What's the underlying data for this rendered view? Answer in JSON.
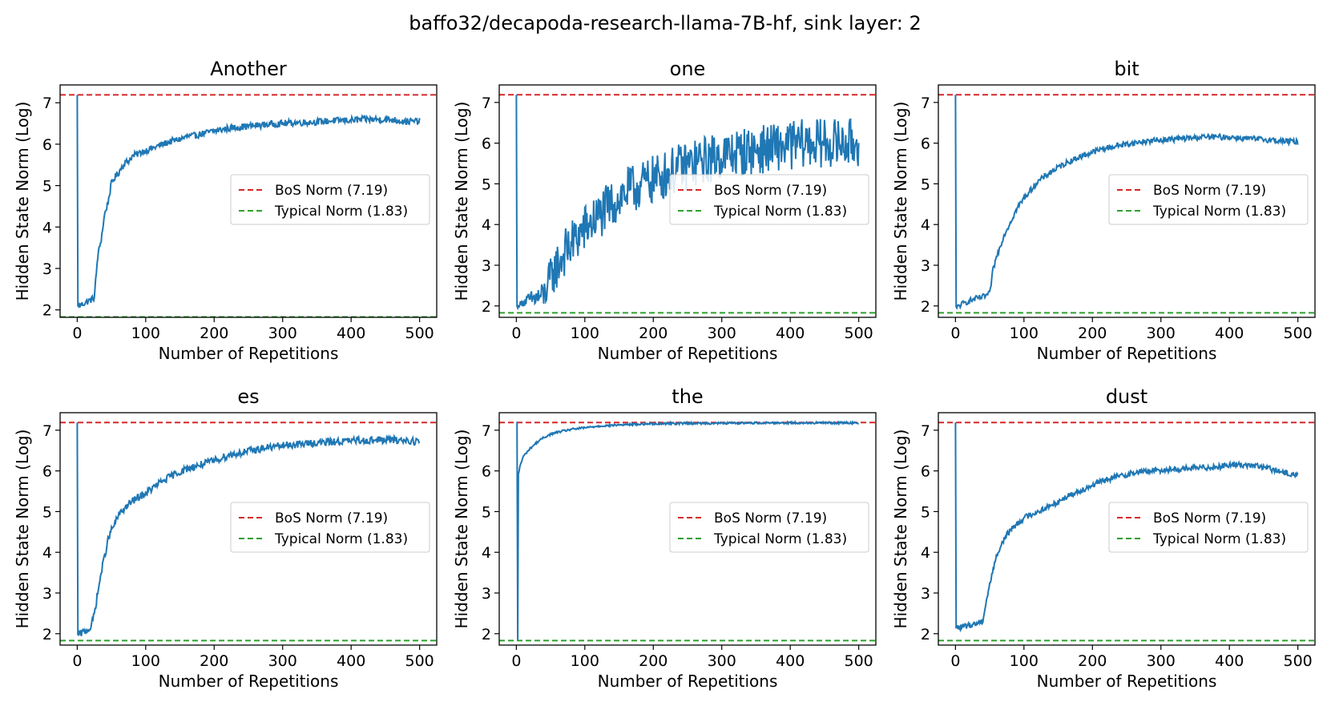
{
  "figure": {
    "suptitle": "baffo32/decapoda-research-llama-7B-hf, sink layer: 2"
  },
  "chart_data": [
    {
      "type": "line",
      "title": "Another",
      "xlabel": "Number of Repetitions",
      "ylabel": "Hidden State Norm (Log)",
      "xlim": [
        -25,
        525
      ],
      "ylim": [
        1.82,
        7.43
      ],
      "xticks": [
        0,
        100,
        200,
        300,
        400,
        500
      ],
      "yticks": [
        2,
        3,
        4,
        5,
        6,
        7
      ],
      "legend": {
        "placement": "center-right",
        "entries": [
          "BoS Norm (7.19)",
          "Typical Norm (1.83)"
        ]
      },
      "reference_lines": [
        {
          "name": "BoS Norm (7.19)",
          "y": 7.19,
          "color": "#d62728",
          "style": "dashed"
        },
        {
          "name": "Typical Norm (1.83)",
          "y": 1.83,
          "color": "#2ca02c",
          "style": "dashed"
        }
      ],
      "series": [
        {
          "name": "Hidden State Norm",
          "color": "#1f77b4",
          "x": [
            0,
            1,
            2,
            5,
            10,
            15,
            20,
            25,
            30,
            35,
            40,
            45,
            50,
            55,
            60,
            65,
            70,
            75,
            80,
            90,
            100,
            110,
            120,
            130,
            140,
            150,
            160,
            170,
            180,
            190,
            200,
            220,
            240,
            260,
            280,
            300,
            320,
            340,
            360,
            380,
            400,
            420,
            440,
            460,
            480,
            500
          ],
          "y": [
            7.19,
            2.1,
            2.08,
            2.12,
            2.16,
            2.2,
            2.24,
            2.3,
            3.3,
            3.7,
            4.3,
            4.6,
            5.05,
            5.2,
            5.3,
            5.45,
            5.55,
            5.6,
            5.7,
            5.78,
            5.85,
            5.9,
            5.97,
            6.03,
            6.08,
            6.12,
            6.18,
            6.2,
            6.24,
            6.28,
            6.32,
            6.38,
            6.42,
            6.45,
            6.48,
            6.5,
            6.52,
            6.53,
            6.55,
            6.57,
            6.58,
            6.6,
            6.6,
            6.59,
            6.55,
            6.55
          ],
          "noise": 0.08
        }
      ]
    },
    {
      "type": "line",
      "title": "one",
      "xlabel": "Number of Repetitions",
      "ylabel": "Hidden State Norm (Log)",
      "xlim": [
        -25,
        525
      ],
      "ylim": [
        1.72,
        7.43
      ],
      "xticks": [
        0,
        100,
        200,
        300,
        400,
        500
      ],
      "yticks": [
        2,
        3,
        4,
        5,
        6,
        7
      ],
      "legend": {
        "placement": "center-right",
        "entries": [
          "BoS Norm (7.19)",
          "Typical Norm (1.83)"
        ]
      },
      "reference_lines": [
        {
          "name": "BoS Norm (7.19)",
          "y": 7.19,
          "color": "#d62728",
          "style": "dashed"
        },
        {
          "name": "Typical Norm (1.83)",
          "y": 1.83,
          "color": "#2ca02c",
          "style": "dashed"
        }
      ],
      "series": [
        {
          "name": "Hidden State Norm",
          "color": "#1f77b4",
          "x": [
            0,
            1,
            2,
            5,
            10,
            20,
            30,
            40,
            50,
            60,
            70,
            80,
            90,
            100,
            120,
            140,
            160,
            180,
            200,
            220,
            240,
            260,
            280,
            300,
            320,
            340,
            360,
            380,
            400,
            420,
            440,
            460,
            480,
            500
          ],
          "y": [
            7.19,
            2.0,
            1.95,
            2.05,
            2.1,
            2.15,
            2.2,
            2.25,
            2.7,
            3.0,
            3.3,
            3.5,
            3.7,
            3.9,
            4.2,
            4.5,
            4.8,
            4.95,
            5.1,
            5.25,
            5.4,
            5.5,
            5.6,
            5.7,
            5.75,
            5.8,
            5.85,
            5.9,
            5.95,
            6.0,
            6.0,
            6.0,
            6.0,
            6.0
          ],
          "noise": 0.6
        }
      ]
    },
    {
      "type": "line",
      "title": "bit",
      "xlabel": "Number of Repetitions",
      "ylabel": "Hidden State Norm (Log)",
      "xlim": [
        -25,
        525
      ],
      "ylim": [
        1.72,
        7.43
      ],
      "xticks": [
        0,
        100,
        200,
        300,
        400,
        500
      ],
      "yticks": [
        2,
        3,
        4,
        5,
        6,
        7
      ],
      "legend": {
        "placement": "center-right",
        "entries": [
          "BoS Norm (7.19)",
          "Typical Norm (1.83)"
        ]
      },
      "reference_lines": [
        {
          "name": "BoS Norm (7.19)",
          "y": 7.19,
          "color": "#d62728",
          "style": "dashed"
        },
        {
          "name": "Typical Norm (1.83)",
          "y": 1.83,
          "color": "#2ca02c",
          "style": "dashed"
        }
      ],
      "series": [
        {
          "name": "Hidden State Norm",
          "color": "#1f77b4",
          "x": [
            0,
            1,
            2,
            5,
            10,
            20,
            30,
            40,
            50,
            55,
            60,
            70,
            80,
            90,
            100,
            110,
            120,
            140,
            160,
            180,
            200,
            220,
            240,
            260,
            280,
            300,
            320,
            340,
            360,
            380,
            400,
            420,
            440,
            460,
            480,
            500
          ],
          "y": [
            7.19,
            1.98,
            1.95,
            2.0,
            2.05,
            2.12,
            2.18,
            2.22,
            2.3,
            2.9,
            3.2,
            3.7,
            4.05,
            4.4,
            4.65,
            4.85,
            5.05,
            5.3,
            5.5,
            5.65,
            5.78,
            5.88,
            5.95,
            6.0,
            6.05,
            6.08,
            6.1,
            6.12,
            6.15,
            6.15,
            6.15,
            6.12,
            6.1,
            6.08,
            6.05,
            6.03
          ],
          "noise": 0.07
        }
      ]
    },
    {
      "type": "line",
      "title": "es",
      "xlabel": "Number of Repetitions",
      "ylabel": "Hidden State Norm (Log)",
      "xlim": [
        -25,
        525
      ],
      "ylim": [
        1.72,
        7.43
      ],
      "xticks": [
        0,
        100,
        200,
        300,
        400,
        500
      ],
      "yticks": [
        2,
        3,
        4,
        5,
        6,
        7
      ],
      "legend": {
        "placement": "center-right",
        "entries": [
          "BoS Norm (7.19)",
          "Typical Norm (1.83)"
        ]
      },
      "reference_lines": [
        {
          "name": "BoS Norm (7.19)",
          "y": 7.19,
          "color": "#d62728",
          "style": "dashed"
        },
        {
          "name": "Typical Norm (1.83)",
          "y": 1.83,
          "color": "#2ca02c",
          "style": "dashed"
        }
      ],
      "series": [
        {
          "name": "Hidden State Norm",
          "color": "#1f77b4",
          "x": [
            0,
            1,
            2,
            5,
            10,
            15,
            20,
            25,
            30,
            35,
            40,
            45,
            50,
            55,
            60,
            70,
            80,
            90,
            100,
            120,
            140,
            160,
            180,
            200,
            220,
            240,
            260,
            280,
            300,
            320,
            340,
            360,
            380,
            400,
            420,
            440,
            460,
            480,
            500
          ],
          "y": [
            7.19,
            1.98,
            1.97,
            2.0,
            2.05,
            2.1,
            2.15,
            2.5,
            3.0,
            3.5,
            3.9,
            4.3,
            4.55,
            4.7,
            4.9,
            5.1,
            5.25,
            5.35,
            5.45,
            5.7,
            5.9,
            6.05,
            6.15,
            6.25,
            6.38,
            6.45,
            6.52,
            6.58,
            6.62,
            6.65,
            6.68,
            6.7,
            6.72,
            6.74,
            6.75,
            6.76,
            6.76,
            6.75,
            6.72
          ],
          "noise": 0.09
        }
      ]
    },
    {
      "type": "line",
      "title": "the",
      "xlabel": "Number of Repetitions",
      "ylabel": "Hidden State Norm (Log)",
      "xlim": [
        -25,
        525
      ],
      "ylim": [
        1.72,
        7.43
      ],
      "xticks": [
        0,
        100,
        200,
        300,
        400,
        500
      ],
      "yticks": [
        2,
        3,
        4,
        5,
        6,
        7
      ],
      "legend": {
        "placement": "center-right",
        "entries": [
          "BoS Norm (7.19)",
          "Typical Norm (1.83)"
        ]
      },
      "reference_lines": [
        {
          "name": "BoS Norm (7.19)",
          "y": 7.19,
          "color": "#d62728",
          "style": "dashed"
        },
        {
          "name": "Typical Norm (1.83)",
          "y": 1.83,
          "color": "#2ca02c",
          "style": "dashed"
        }
      ],
      "series": [
        {
          "name": "Hidden State Norm",
          "color": "#1f77b4",
          "x": [
            0,
            1,
            2,
            3,
            4,
            5,
            8,
            10,
            15,
            20,
            30,
            40,
            50,
            60,
            80,
            100,
            120,
            150,
            200,
            250,
            300,
            350,
            400,
            450,
            500
          ],
          "y": [
            7.19,
            7.19,
            1.85,
            5.9,
            6.0,
            6.1,
            6.25,
            6.35,
            6.45,
            6.55,
            6.7,
            6.82,
            6.9,
            6.95,
            7.02,
            7.06,
            7.1,
            7.13,
            7.16,
            7.17,
            7.17,
            7.18,
            7.18,
            7.18,
            7.18
          ],
          "noise": 0.025
        }
      ]
    },
    {
      "type": "line",
      "title": "dust",
      "xlabel": "Number of Repetitions",
      "ylabel": "Hidden State Norm (Log)",
      "xlim": [
        -25,
        525
      ],
      "ylim": [
        1.72,
        7.43
      ],
      "xticks": [
        0,
        100,
        200,
        300,
        400,
        500
      ],
      "yticks": [
        2,
        3,
        4,
        5,
        6,
        7
      ],
      "legend": {
        "placement": "center-right",
        "entries": [
          "BoS Norm (7.19)",
          "Typical Norm (1.83)"
        ]
      },
      "reference_lines": [
        {
          "name": "BoS Norm (7.19)",
          "y": 7.19,
          "color": "#d62728",
          "style": "dashed"
        },
        {
          "name": "Typical Norm (1.83)",
          "y": 1.83,
          "color": "#2ca02c",
          "style": "dashed"
        }
      ],
      "series": [
        {
          "name": "Hidden State Norm",
          "color": "#1f77b4",
          "x": [
            0,
            1,
            2,
            5,
            10,
            20,
            30,
            40,
            45,
            50,
            55,
            60,
            70,
            80,
            90,
            100,
            120,
            140,
            160,
            180,
            200,
            220,
            240,
            260,
            280,
            300,
            320,
            340,
            360,
            380,
            400,
            420,
            440,
            460,
            480,
            500
          ],
          "y": [
            7.19,
            2.15,
            2.15,
            2.15,
            2.17,
            2.2,
            2.25,
            2.32,
            2.8,
            3.2,
            3.6,
            3.9,
            4.3,
            4.55,
            4.7,
            4.85,
            5.0,
            5.15,
            5.35,
            5.5,
            5.65,
            5.78,
            5.88,
            5.95,
            6.0,
            6.02,
            6.04,
            6.06,
            6.08,
            6.1,
            6.15,
            6.15,
            6.12,
            6.05,
            5.95,
            5.9
          ],
          "noise": 0.07
        }
      ]
    }
  ]
}
